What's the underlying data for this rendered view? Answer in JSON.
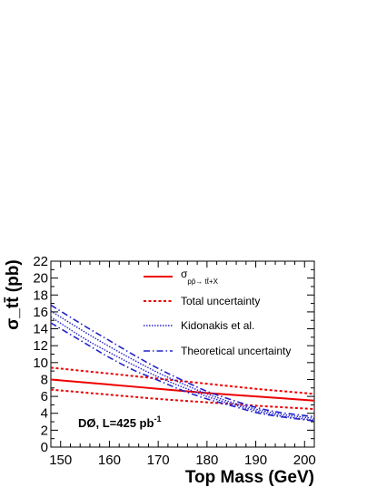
{
  "chart_data": {
    "type": "line",
    "xlabel": "Top Mass (GeV)",
    "ylabel": "σ_tt̄ (pb)",
    "xlim": [
      148,
      202
    ],
    "ylim": [
      0,
      22
    ],
    "x_ticks": [
      150,
      160,
      170,
      180,
      190,
      200
    ],
    "y_ticks": [
      0,
      2,
      4,
      6,
      8,
      10,
      12,
      14,
      16,
      18,
      20,
      22
    ],
    "grid": false,
    "legend_placement": "top-right",
    "annotation": "DØ, L=425 pb",
    "annotation_superscript": "-1",
    "legend": [
      {
        "key": "measured",
        "label_main": "σ",
        "label_sub": "pp̄→ tt̄+X"
      },
      {
        "key": "total_unc",
        "label": "Total uncertainty"
      },
      {
        "key": "kidonakis",
        "label": "Kidonakis et al."
      },
      {
        "key": "theory_unc",
        "label": "Theoretical uncertainty"
      }
    ],
    "series": [
      {
        "key": "measured",
        "x": [
          148,
          160,
          170,
          180,
          190,
          202
        ],
        "y": [
          8.0,
          7.4,
          6.9,
          6.4,
          6.0,
          5.5
        ]
      },
      {
        "key": "total_unc",
        "part": "upper",
        "x": [
          148,
          160,
          170,
          180,
          190,
          202
        ],
        "y": [
          9.4,
          8.7,
          8.1,
          7.5,
          6.9,
          6.3
        ]
      },
      {
        "key": "total_unc",
        "part": "lower",
        "x": [
          148,
          160,
          170,
          180,
          190,
          202
        ],
        "y": [
          6.8,
          6.2,
          5.7,
          5.3,
          4.9,
          4.5
        ]
      },
      {
        "key": "kidonakis",
        "part": "upper",
        "x": [
          148,
          155,
          160,
          165,
          170,
          175,
          180,
          185,
          190,
          195,
          202
        ],
        "y": [
          16.1,
          13.6,
          11.9,
          10.3,
          8.8,
          7.5,
          6.3,
          5.3,
          4.5,
          3.9,
          3.4
        ]
      },
      {
        "key": "kidonakis",
        "part": "lower",
        "x": [
          148,
          155,
          160,
          165,
          170,
          175,
          180,
          185,
          190,
          195,
          202
        ],
        "y": [
          15.4,
          12.8,
          11.2,
          9.7,
          8.3,
          7.1,
          6.0,
          5.1,
          4.3,
          3.7,
          3.2
        ]
      },
      {
        "key": "theory_unc",
        "part": "upper",
        "x": [
          148,
          155,
          160,
          165,
          170,
          175,
          180,
          185,
          190,
          195,
          202
        ],
        "y": [
          16.8,
          14.3,
          12.6,
          10.9,
          9.3,
          7.9,
          6.6,
          5.6,
          4.7,
          4.1,
          3.6
        ]
      },
      {
        "key": "theory_unc",
        "part": "lower",
        "x": [
          148,
          155,
          160,
          165,
          170,
          175,
          180,
          185,
          190,
          195,
          202
        ],
        "y": [
          14.7,
          12.3,
          10.6,
          9.1,
          7.9,
          6.7,
          5.7,
          4.9,
          4.1,
          3.6,
          3.1
        ]
      }
    ],
    "styles": {
      "measured": {
        "color": "#ee0000",
        "dash": "",
        "width": 2
      },
      "total_unc": {
        "color": "#ee0000",
        "dash": "3,2.5",
        "width": 2
      },
      "kidonakis": {
        "color": "#2222cc",
        "dash": "1.5,1.5",
        "width": 1.4
      },
      "theory_unc": {
        "color": "#2222cc",
        "dash": "7,3,1.5,3",
        "width": 1.6
      }
    }
  }
}
